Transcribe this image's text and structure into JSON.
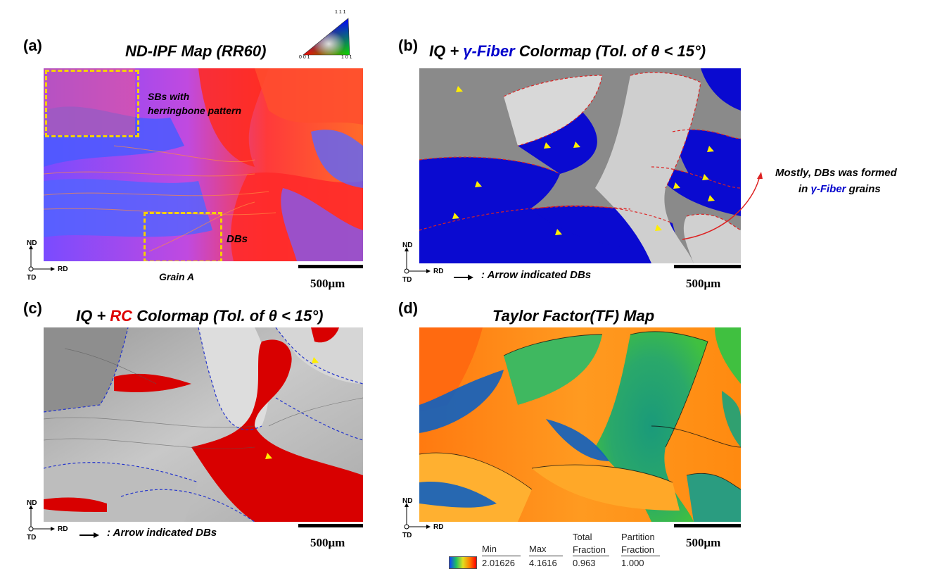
{
  "panels": {
    "a": {
      "letter": "(a)",
      "title": "ND-IPF Map (RR60)",
      "annotation_sbs": "SBs with\nherringbone pattern",
      "annotation_dbs": "DBs",
      "annotation_grain": "Grain A",
      "triangle_labels": {
        "top": "1 1 1",
        "left": "0 0 1",
        "right": "1 0 1"
      }
    },
    "b": {
      "letter": "(b)",
      "title_prefix": "IQ + ",
      "title_highlight": "γ-Fiber",
      "title_suffix": " Colormap (Tol. of θ < 15°)",
      "arrow_note": ": Arrow indicated DBs",
      "side_note_line1": "Mostly, DBs was formed",
      "side_note_line2_prefix": "in ",
      "side_note_line2_highlight": "γ-Fiber",
      "side_note_line2_suffix": " grains"
    },
    "c": {
      "letter": "(c)",
      "title_prefix": "IQ + ",
      "title_highlight": "RC",
      "title_suffix": " Colormap (Tol. of θ < 15°)",
      "arrow_note": ": Arrow indicated DBs"
    },
    "d": {
      "letter": "(d)",
      "title": "Taylor Factor(TF) Map",
      "legend": {
        "headers": [
          "Min",
          "Max",
          "Total\nFraction",
          "Partition\nFraction"
        ],
        "values": [
          "2.01626",
          "4.1616",
          "0.963",
          "1.000"
        ]
      }
    }
  },
  "axes": {
    "nd": "ND",
    "rd": "RD",
    "td": "TD"
  },
  "scale_bar_label": "500μm",
  "colors": {
    "gamma_fiber": "#0000cc",
    "rc": "#dd0000",
    "annotation_box": "#f5d000",
    "arrow": "#ffee00",
    "boundary_b": "#dd2222",
    "boundary_c": "#2233cc"
  }
}
